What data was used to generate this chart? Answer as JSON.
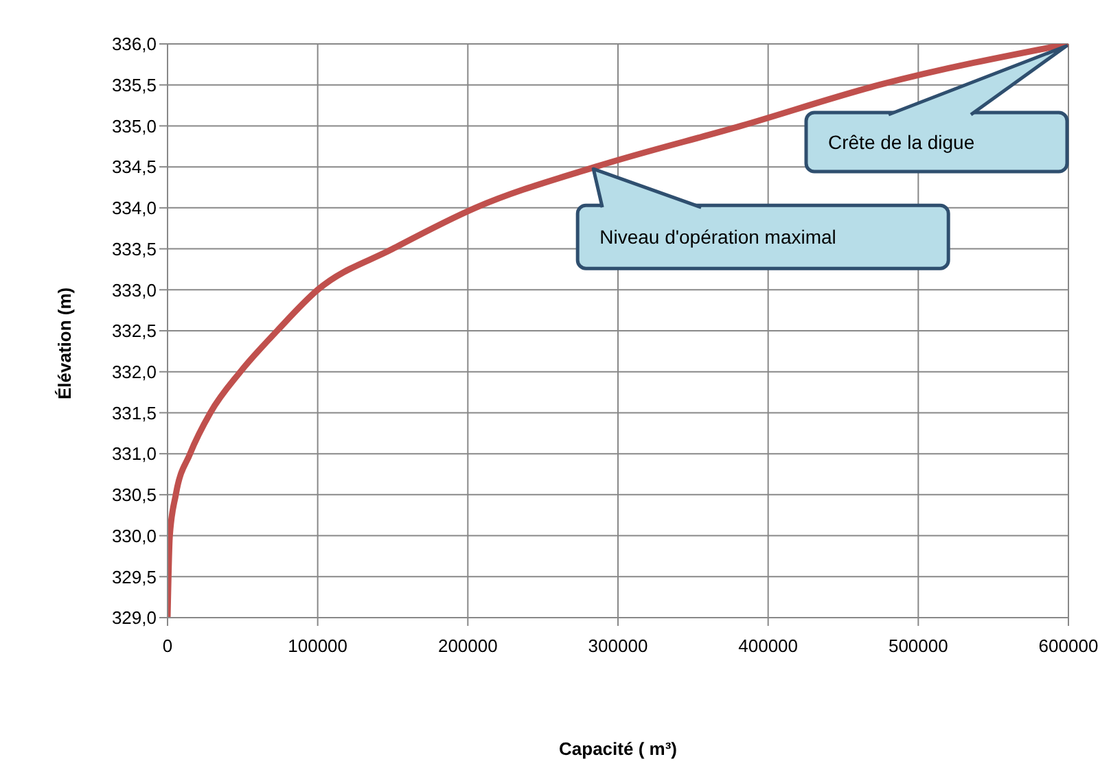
{
  "chart_data": {
    "type": "line",
    "xlabel": "Capacité  ( m³)",
    "ylabel": "Élévation (m)",
    "x": [
      0,
      1500,
      5500,
      15000,
      28500,
      48500,
      73000,
      100000,
      150000,
      205000,
      285000,
      382000,
      474000,
      600000
    ],
    "series": [
      {
        "color": "#c0504d",
        "values": [
          329.0,
          330.0,
          330.5,
          331.0,
          331.5,
          332.0,
          332.5,
          333.0,
          333.5,
          334.0,
          334.5,
          335.0,
          335.5,
          336.0
        ]
      }
    ],
    "xlim": [
      0,
      600000
    ],
    "xticks": [
      0,
      100000,
      200000,
      300000,
      400000,
      500000,
      600000
    ],
    "ylim": [
      329,
      336
    ],
    "yticks": [
      {
        "value": 329,
        "label": "329,0"
      },
      {
        "value": 329.5,
        "label": "329,5"
      },
      {
        "value": 330,
        "label": "330,0"
      },
      {
        "value": 330.5,
        "label": "330,5"
      },
      {
        "value": 331,
        "label": "331,0"
      },
      {
        "value": 331.5,
        "label": "331,5"
      },
      {
        "value": 332,
        "label": "332,0"
      },
      {
        "value": 332.5,
        "label": "332,5"
      },
      {
        "value": 333,
        "label": "333,0"
      },
      {
        "value": 333.5,
        "label": "333,5"
      },
      {
        "value": 334,
        "label": "334,0"
      },
      {
        "value": 334.5,
        "label": "334,5"
      },
      {
        "value": 335,
        "label": "335,0"
      },
      {
        "value": 335.5,
        "label": "335,5"
      },
      {
        "value": 336,
        "label": "336,0"
      }
    ],
    "grid": true,
    "marker": "none",
    "line_style": "solid",
    "annotations": [
      {
        "text": "Niveau d'opération maximal",
        "x": 285000,
        "y": 334.5
      },
      {
        "text": "Crête de la digue",
        "x": 600000,
        "y": 336
      }
    ]
  }
}
